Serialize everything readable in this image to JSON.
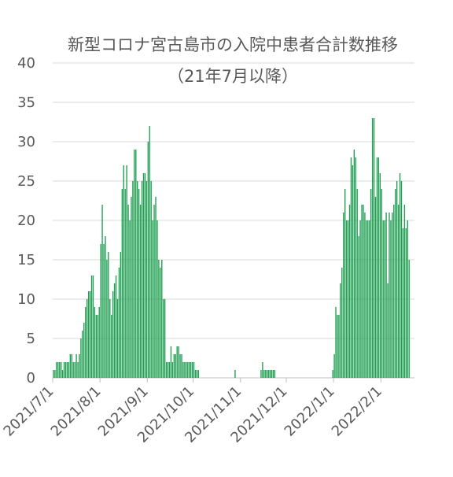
{
  "chart_data": {
    "type": "bar",
    "title": "新型コロナ宮古島市の入院中患者合計数推移",
    "subtitle": "（21年7月以降）",
    "xlabel": "",
    "ylabel": "",
    "ylim": [
      0,
      40
    ],
    "yticks": [
      0,
      5,
      10,
      15,
      20,
      25,
      30,
      35,
      40
    ],
    "grid": true,
    "legend": "none",
    "bar_color": "#1e9e50",
    "x_start": "2021-07-01",
    "x_end": "2022-02-22",
    "xtick_labels": [
      "2021/7/1",
      "2021/8/1",
      "2021/9/1",
      "2021/10/1",
      "2021/11/1",
      "2021/12/1",
      "2022/1/1",
      "2022/2/1"
    ],
    "series": [
      {
        "values": [
          1,
          1,
          2,
          2,
          2,
          2,
          1,
          2,
          2,
          2,
          2,
          3,
          3,
          2,
          2,
          3,
          2,
          3,
          5,
          6,
          7,
          9,
          10,
          11,
          11,
          13,
          13,
          9,
          8,
          8,
          9,
          17,
          22,
          17,
          18,
          15,
          16,
          10,
          8,
          11,
          12,
          13,
          10,
          14,
          16,
          24,
          27,
          24,
          27,
          22,
          20,
          23,
          25,
          29,
          29,
          25,
          24,
          22,
          25,
          26,
          26,
          25,
          30,
          32,
          25,
          20,
          22,
          23,
          20,
          15,
          14,
          15,
          10,
          10,
          2,
          2,
          2,
          4,
          2,
          3,
          3,
          4,
          4,
          3,
          3,
          2,
          2,
          2,
          2,
          2,
          2,
          2,
          2,
          1,
          1,
          1,
          0,
          0,
          0,
          0,
          0,
          0,
          0,
          0,
          0,
          0,
          0,
          0,
          0,
          0,
          0,
          0,
          0,
          0,
          0,
          0,
          0,
          0,
          0,
          1,
          0,
          0,
          0,
          0,
          0,
          0,
          0,
          0,
          0,
          0,
          0,
          0,
          0,
          0,
          0,
          0,
          1,
          2,
          1,
          1,
          1,
          1,
          1,
          1,
          1,
          1,
          0,
          0,
          0,
          0,
          0,
          0,
          0,
          0,
          0,
          0,
          0,
          0,
          0,
          0,
          0,
          0,
          0,
          0,
          0,
          0,
          0,
          0,
          0,
          0,
          0,
          0,
          0,
          0,
          0,
          0,
          0,
          0,
          0,
          0,
          0,
          0,
          0,
          1,
          3,
          9,
          8,
          8,
          12,
          14,
          21,
          24,
          20,
          20,
          22,
          28,
          27,
          29,
          28,
          24,
          18,
          20,
          22,
          22,
          21,
          20,
          20,
          20,
          24,
          33,
          33,
          23,
          28,
          28,
          26,
          24,
          20,
          20,
          21,
          12,
          21,
          20,
          21,
          22,
          24,
          25,
          22,
          26,
          25,
          19,
          22,
          19,
          20,
          15
        ]
      }
    ]
  }
}
